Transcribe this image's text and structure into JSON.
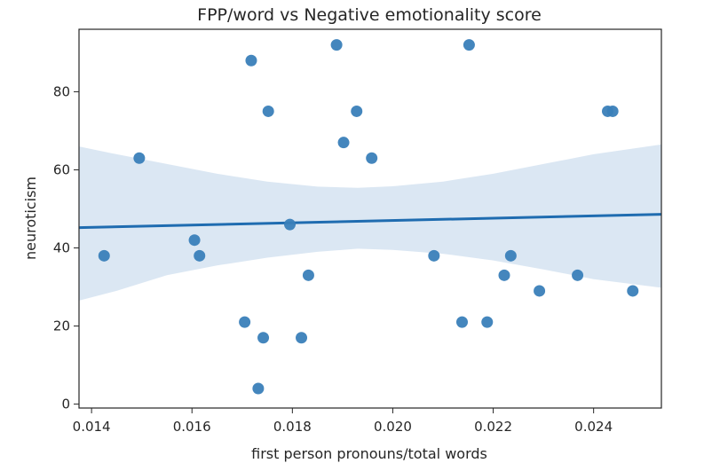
{
  "chart_data": {
    "type": "scatter",
    "title": "FPP/word vs Negative emotionality score",
    "xlabel": "first person pronouns/total words",
    "ylabel": "neuroticism",
    "xlim": [
      0.01375,
      0.02535
    ],
    "ylim": [
      -1,
      96
    ],
    "xticks": [
      0.014,
      0.016,
      0.018,
      0.02,
      0.022,
      0.024
    ],
    "xtick_labels": [
      "0.014",
      "0.016",
      "0.018",
      "0.020",
      "0.022",
      "0.024"
    ],
    "yticks": [
      0,
      20,
      40,
      60,
      80
    ],
    "ytick_labels": [
      "0",
      "20",
      "40",
      "60",
      "80"
    ],
    "grid": false,
    "colors": {
      "points": "#3a7fb9",
      "regression_line": "#1f6cb0",
      "confidence_band": "#d5e3f1"
    },
    "points": [
      {
        "x": 0.01425,
        "y": 38
      },
      {
        "x": 0.01495,
        "y": 63
      },
      {
        "x": 0.01605,
        "y": 42
      },
      {
        "x": 0.01615,
        "y": 38
      },
      {
        "x": 0.01705,
        "y": 21
      },
      {
        "x": 0.01718,
        "y": 88
      },
      {
        "x": 0.01732,
        "y": 4
      },
      {
        "x": 0.01742,
        "y": 17
      },
      {
        "x": 0.01752,
        "y": 75
      },
      {
        "x": 0.01795,
        "y": 46
      },
      {
        "x": 0.01818,
        "y": 17
      },
      {
        "x": 0.01832,
        "y": 33
      },
      {
        "x": 0.01888,
        "y": 92
      },
      {
        "x": 0.01902,
        "y": 67
      },
      {
        "x": 0.01928,
        "y": 75
      },
      {
        "x": 0.01958,
        "y": 63
      },
      {
        "x": 0.02082,
        "y": 38
      },
      {
        "x": 0.02138,
        "y": 21
      },
      {
        "x": 0.02152,
        "y": 92
      },
      {
        "x": 0.02188,
        "y": 21
      },
      {
        "x": 0.02222,
        "y": 33
      },
      {
        "x": 0.02235,
        "y": 38
      },
      {
        "x": 0.02292,
        "y": 29
      },
      {
        "x": 0.02368,
        "y": 33
      },
      {
        "x": 0.02428,
        "y": 75
      },
      {
        "x": 0.02438,
        "y": 75
      },
      {
        "x": 0.02478,
        "y": 29
      }
    ],
    "regression": {
      "x": [
        0.01375,
        0.02535
      ],
      "y": [
        45.2,
        48.6
      ]
    },
    "confidence_band": {
      "x": [
        0.01375,
        0.0145,
        0.0155,
        0.0165,
        0.0175,
        0.0185,
        0.0193,
        0.02,
        0.021,
        0.022,
        0.023,
        0.024,
        0.02535
      ],
      "upper": [
        66,
        64,
        61.5,
        59,
        57,
        55.7,
        55.4,
        55.8,
        57,
        59,
        61.5,
        64,
        66.5
      ],
      "lower": [
        26.5,
        29,
        33,
        35.5,
        37.5,
        39,
        39.8,
        39.5,
        38.5,
        36.8,
        34.5,
        32,
        29.8
      ]
    }
  }
}
